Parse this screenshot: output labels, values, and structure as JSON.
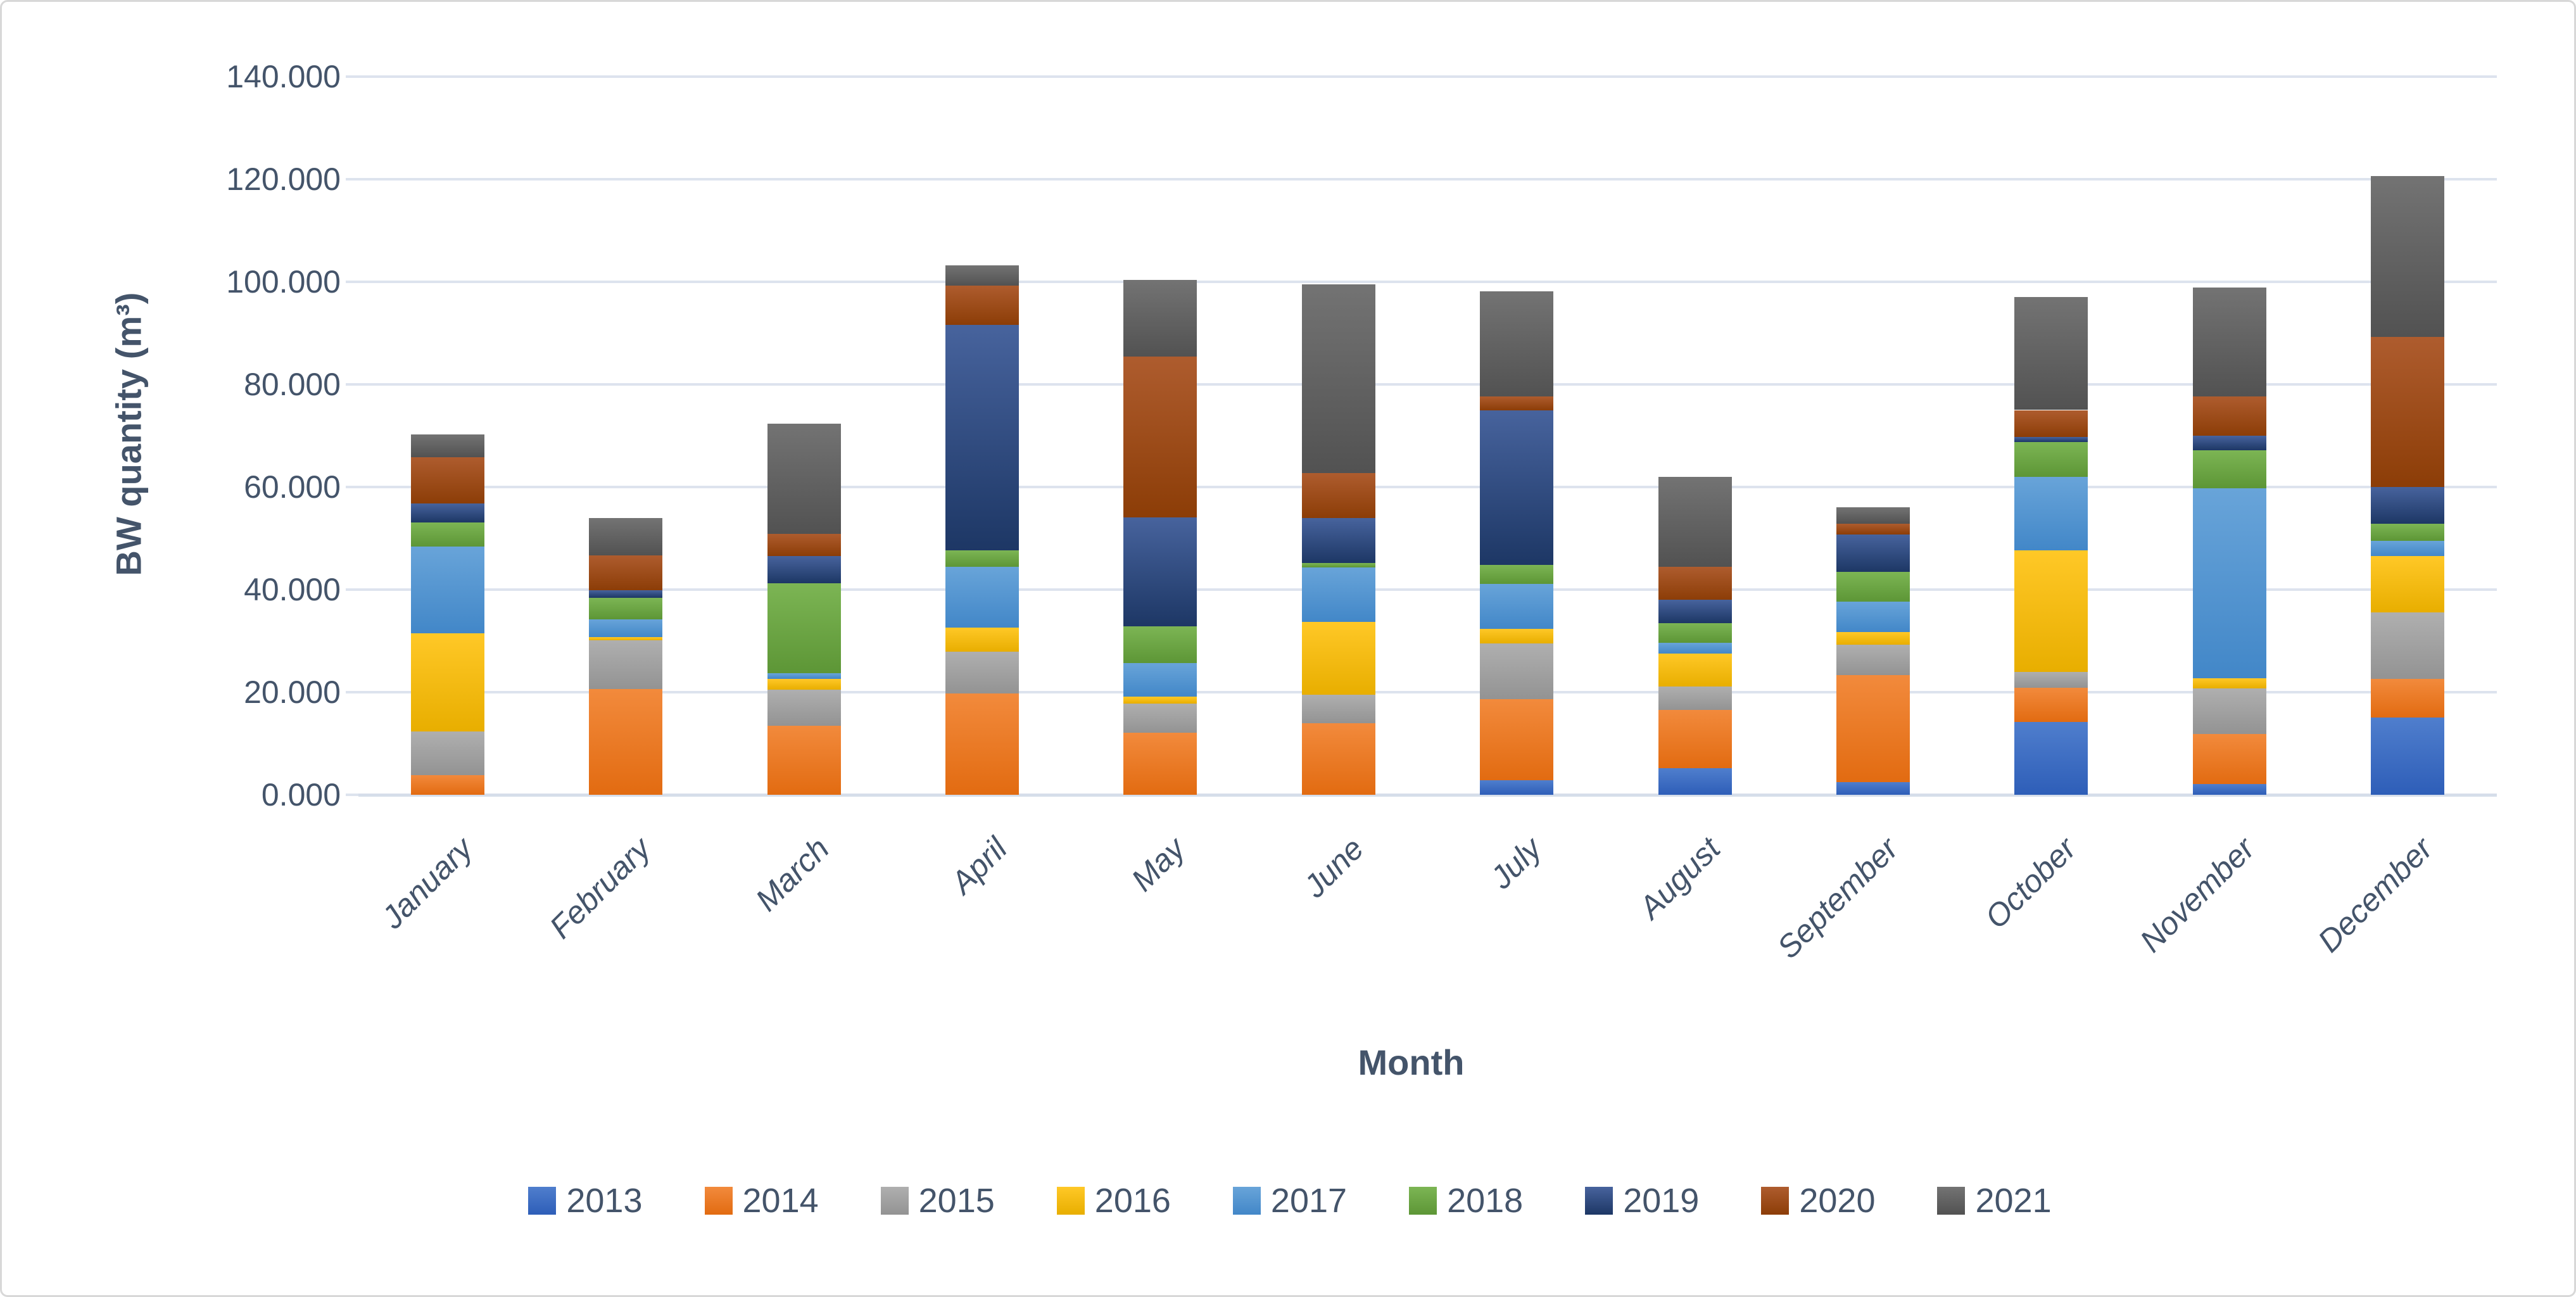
{
  "chart_data": {
    "type": "bar",
    "stacked": true,
    "title": "",
    "xlabel": "Month",
    "ylabel": "BW quantity (m³)",
    "unit_note": "values in thousands of m³ (axis shows dot thousand separator)",
    "ylim": [
      0,
      140
    ],
    "grid": true,
    "legend_position": "bottom",
    "y_ticks": [
      "0.000",
      "20.000",
      "40.000",
      "60.000",
      "80.000",
      "100.000",
      "120.000",
      "140.000"
    ],
    "y_tick_values": [
      0,
      20,
      40,
      60,
      80,
      100,
      120,
      140
    ],
    "categories": [
      "January",
      "February",
      "March",
      "April",
      "May",
      "June",
      "July",
      "August",
      "September",
      "October",
      "November",
      "December"
    ],
    "series": [
      {
        "name": "2013",
        "color": "#4472C4",
        "gradient_top": "#4F7ECD",
        "gradient_bottom": "#2E5EB8",
        "values": [
          0,
          0,
          0,
          0,
          0,
          0,
          2.8,
          5.2,
          2.5,
          14.2,
          2.1,
          15.1
        ]
      },
      {
        "name": "2014",
        "color": "#ED7D31",
        "gradient_top": "#F28A3C",
        "gradient_bottom": "#E26B11",
        "values": [
          3.8,
          20.6,
          13.5,
          19.8,
          12.1,
          14.0,
          15.9,
          11.4,
          20.8,
          6.7,
          9.7,
          7.5
        ]
      },
      {
        "name": "2015",
        "color": "#A5A5A5",
        "gradient_top": "#AFAFAF",
        "gradient_bottom": "#939393",
        "values": [
          8.5,
          9.5,
          7.0,
          8.1,
          5.7,
          5.5,
          10.8,
          4.5,
          5.9,
          3.0,
          9.0,
          13.0
        ]
      },
      {
        "name": "2016",
        "color": "#FFC000",
        "gradient_top": "#FFC827",
        "gradient_bottom": "#E8AE00",
        "values": [
          19.2,
          0.7,
          2.1,
          4.7,
          1.3,
          14.2,
          2.8,
          6.4,
          2.5,
          23.8,
          1.9,
          10.9
        ]
      },
      {
        "name": "2017",
        "color": "#5B9BD5",
        "gradient_top": "#68A4D9",
        "gradient_bottom": "#4287C8",
        "values": [
          16.9,
          3.4,
          1.1,
          11.8,
          6.6,
          10.6,
          8.8,
          2.1,
          5.9,
          14.3,
          37.0,
          3.0
        ]
      },
      {
        "name": "2018",
        "color": "#70AD47",
        "gradient_top": "#7CB554",
        "gradient_bottom": "#5D9636",
        "values": [
          4.7,
          4.2,
          17.5,
          3.3,
          7.1,
          0.9,
          3.7,
          3.9,
          5.8,
          6.8,
          7.5,
          3.3
        ]
      },
      {
        "name": "2019",
        "color": "#264478",
        "gradient_top": "#47639D",
        "gradient_bottom": "#1D3765",
        "values": [
          3.7,
          1.5,
          5.3,
          43.9,
          21.3,
          8.7,
          30.1,
          4.5,
          7.3,
          0.9,
          2.8,
          7.2
        ]
      },
      {
        "name": "2020",
        "color": "#9E480E",
        "gradient_top": "#AE5C2E",
        "gradient_bottom": "#8C3D07",
        "values": [
          9.0,
          6.8,
          4.4,
          7.6,
          31.3,
          8.8,
          2.8,
          6.4,
          2.2,
          5.3,
          7.7,
          29.3
        ]
      },
      {
        "name": "2021",
        "color": "#636363",
        "gradient_top": "#737373",
        "gradient_bottom": "#525252",
        "values": [
          4.4,
          7.2,
          21.4,
          4.0,
          15.0,
          36.8,
          20.5,
          17.6,
          3.1,
          22.0,
          21.2,
          31.3
        ]
      }
    ]
  }
}
